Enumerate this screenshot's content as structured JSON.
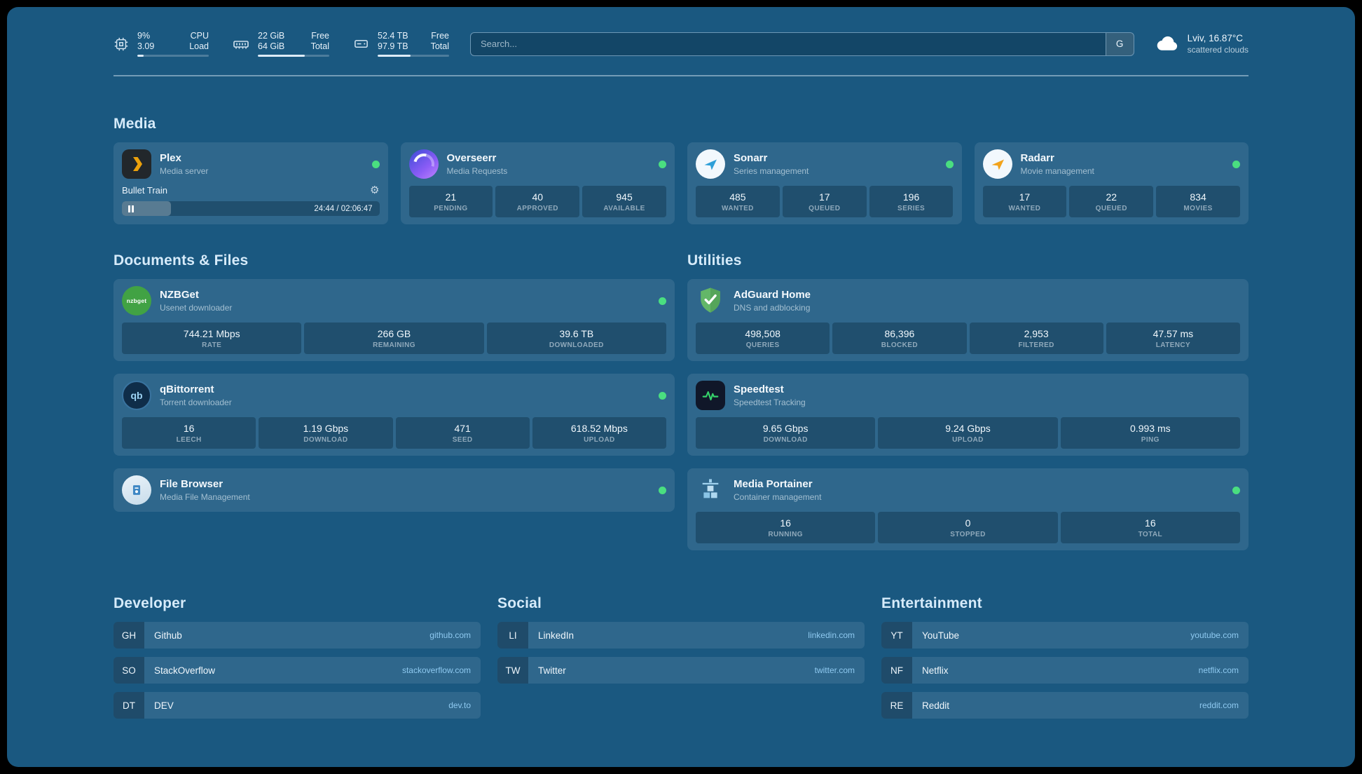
{
  "theme": {
    "background": "#1a5880",
    "card": "#2e6a93",
    "status_online": "#4ade80",
    "domain_link": "#8ec9f0",
    "progress_fill": "#dcebf7"
  },
  "topbar": {
    "resources": [
      {
        "name": "cpu",
        "rows": [
          {
            "value": "9%",
            "label": "CPU"
          },
          {
            "value": "3.09",
            "label": "Load"
          }
        ],
        "progress": 9
      },
      {
        "name": "memory",
        "rows": [
          {
            "value": "22 GiB",
            "label": "Free"
          },
          {
            "value": "64 GiB",
            "label": "Total"
          }
        ],
        "progress": 66
      },
      {
        "name": "disk",
        "rows": [
          {
            "value": "52.4 TB",
            "label": "Free"
          },
          {
            "value": "97.9 TB",
            "label": "Total"
          }
        ],
        "progress": 46
      }
    ],
    "search": {
      "placeholder": "Search...",
      "provider": "G"
    },
    "weather": {
      "location": "Lviv, 16.87°C",
      "condition": "scattered clouds"
    }
  },
  "sections": {
    "media": {
      "title": "Media"
    },
    "documents": {
      "title": "Documents & Files"
    },
    "utilities": {
      "title": "Utilities"
    }
  },
  "icon_labels": {
    "nzbget": "nzbget",
    "qbittorrent": "qb",
    "gear": "⚙"
  },
  "services": {
    "plex": {
      "name": "Plex",
      "desc": "Media server",
      "player": {
        "title": "Bullet Train",
        "time": "24:44 / 02:06:47",
        "progress": 19
      }
    },
    "overseerr": {
      "name": "Overseerr",
      "desc": "Media Requests",
      "stats": [
        {
          "value": "21",
          "label": "PENDING"
        },
        {
          "value": "40",
          "label": "APPROVED"
        },
        {
          "value": "945",
          "label": "AVAILABLE"
        }
      ]
    },
    "sonarr": {
      "name": "Sonarr",
      "desc": "Series management",
      "stats": [
        {
          "value": "485",
          "label": "WANTED"
        },
        {
          "value": "17",
          "label": "QUEUED"
        },
        {
          "value": "196",
          "label": "SERIES"
        }
      ]
    },
    "radarr": {
      "name": "Radarr",
      "desc": "Movie management",
      "stats": [
        {
          "value": "17",
          "label": "WANTED"
        },
        {
          "value": "22",
          "label": "QUEUED"
        },
        {
          "value": "834",
          "label": "MOVIES"
        }
      ]
    },
    "nzbget": {
      "name": "NZBGet",
      "desc": "Usenet downloader",
      "stats": [
        {
          "value": "744.21 Mbps",
          "label": "RATE"
        },
        {
          "value": "266 GB",
          "label": "REMAINING"
        },
        {
          "value": "39.6 TB",
          "label": "DOWNLOADED"
        }
      ]
    },
    "qbittorrent": {
      "name": "qBittorrent",
      "desc": "Torrent downloader",
      "stats": [
        {
          "value": "16",
          "label": "LEECH"
        },
        {
          "value": "1.19 Gbps",
          "label": "DOWNLOAD"
        },
        {
          "value": "471",
          "label": "SEED"
        },
        {
          "value": "618.52 Mbps",
          "label": "UPLOAD"
        }
      ]
    },
    "filebrowser": {
      "name": "File Browser",
      "desc": "Media File Management"
    },
    "adguard": {
      "name": "AdGuard Home",
      "desc": "DNS and adblocking",
      "stats": [
        {
          "value": "498,508",
          "label": "QUERIES"
        },
        {
          "value": "86,396",
          "label": "BLOCKED"
        },
        {
          "value": "2,953",
          "label": "FILTERED"
        },
        {
          "value": "47.57 ms",
          "label": "LATENCY"
        }
      ]
    },
    "speedtest": {
      "name": "Speedtest",
      "desc": "Speedtest Tracking",
      "stats": [
        {
          "value": "9.65 Gbps",
          "label": "DOWNLOAD"
        },
        {
          "value": "9.24 Gbps",
          "label": "UPLOAD"
        },
        {
          "value": "0.993 ms",
          "label": "PING"
        }
      ]
    },
    "portainer": {
      "name": "Media Portainer",
      "desc": "Container management",
      "stats": [
        {
          "value": "16",
          "label": "RUNNING"
        },
        {
          "value": "0",
          "label": "STOPPED"
        },
        {
          "value": "16",
          "label": "TOTAL"
        }
      ]
    }
  },
  "bookmarks": [
    {
      "title": "Developer",
      "items": [
        {
          "abbr": "GH",
          "name": "Github",
          "domain": "github.com"
        },
        {
          "abbr": "SO",
          "name": "StackOverflow",
          "domain": "stackoverflow.com"
        },
        {
          "abbr": "DT",
          "name": "DEV",
          "domain": "dev.to"
        }
      ]
    },
    {
      "title": "Social",
      "items": [
        {
          "abbr": "LI",
          "name": "LinkedIn",
          "domain": "linkedin.com"
        },
        {
          "abbr": "TW",
          "name": "Twitter",
          "domain": "twitter.com"
        }
      ]
    },
    {
      "title": "Entertainment",
      "items": [
        {
          "abbr": "YT",
          "name": "YouTube",
          "domain": "youtube.com"
        },
        {
          "abbr": "NF",
          "name": "Netflix",
          "domain": "netflix.com"
        },
        {
          "abbr": "RE",
          "name": "Reddit",
          "domain": "reddit.com"
        }
      ]
    }
  ]
}
